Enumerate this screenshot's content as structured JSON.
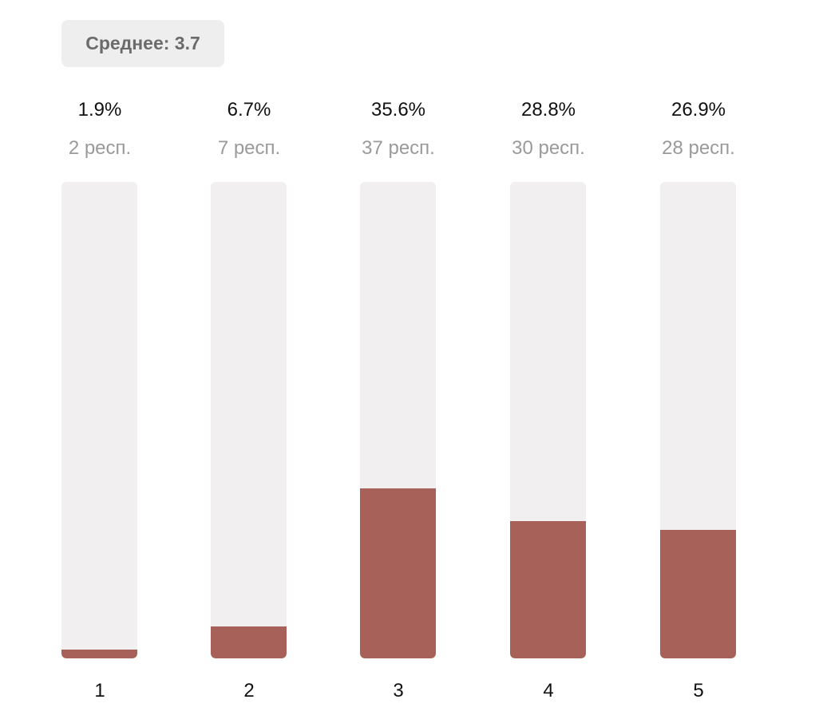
{
  "summary": {
    "average_label": "Среднее:",
    "average_value": "3.7"
  },
  "colors": {
    "fill": "#a86158",
    "track": "#f1efef",
    "badge_bg": "#efeeee"
  },
  "chart_data": {
    "type": "bar",
    "categories": [
      "1",
      "2",
      "3",
      "4",
      "5"
    ],
    "values": [
      1.9,
      6.7,
      35.6,
      28.8,
      26.9
    ],
    "value_labels": [
      "1.9%",
      "6.7%",
      "35.6%",
      "28.8%",
      "26.9%"
    ],
    "counts": [
      2,
      7,
      37,
      30,
      28
    ],
    "count_labels": [
      "2 респ.",
      "7 респ.",
      "37 респ.",
      "30 респ.",
      "28 респ."
    ],
    "ylim": [
      0,
      100
    ],
    "title": "",
    "xlabel": "",
    "ylabel": ""
  }
}
